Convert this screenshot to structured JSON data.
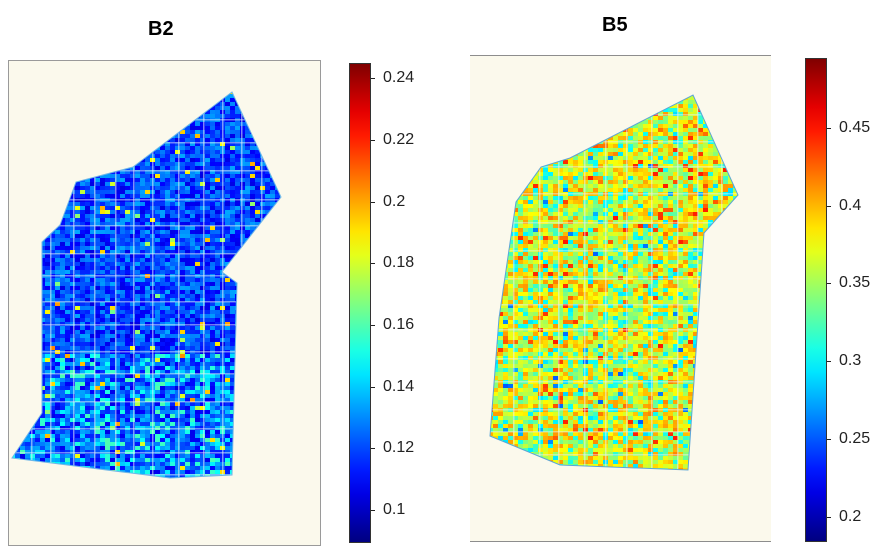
{
  "colormap": "jet",
  "chart_data": [
    {
      "type": "heatmap",
      "title": "B2",
      "colorbar": {
        "min": 0.09,
        "max": 0.245,
        "ticks": [
          0.24,
          0.22,
          0.2,
          0.18,
          0.16,
          0.14,
          0.12,
          0.1
        ],
        "tick_labels": [
          "0.24",
          "0.22",
          "0.2",
          "0.18",
          "0.16",
          "0.14",
          "0.12",
          "0.1"
        ]
      },
      "field_value_range": [
        0.1,
        0.2
      ],
      "dominant_value": 0.11,
      "background_color": "#fbf9ec"
    },
    {
      "type": "heatmap",
      "title": "B5",
      "colorbar": {
        "min": 0.185,
        "max": 0.495,
        "ticks": [
          0.45,
          0.4,
          0.35,
          0.3,
          0.25,
          0.2
        ],
        "tick_labels": [
          "0.45",
          "0.4",
          "0.35",
          "0.3",
          "0.25",
          "0.2"
        ]
      },
      "field_value_range": [
        0.28,
        0.45
      ],
      "dominant_value": 0.37,
      "background_color": "#fbf9ec"
    }
  ]
}
